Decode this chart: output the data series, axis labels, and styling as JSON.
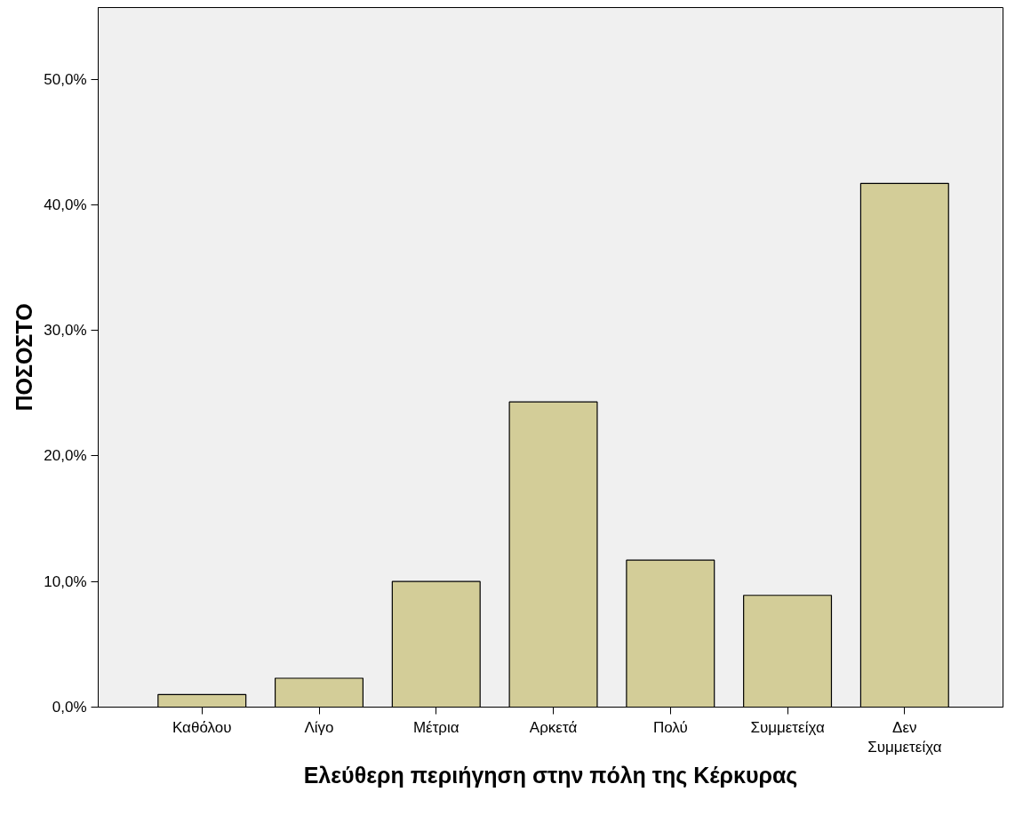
{
  "chart_data": {
    "type": "bar",
    "xlabel": "Ελεύθερη περιήγηση στην πόλη της Κέρκυρας",
    "ylabel": "ΠΟΣΟΣΤΟ",
    "categories": [
      "Καθόλου",
      "Λίγο",
      "Μέτρια",
      "Αρκετά",
      "Πολύ",
      "Συμμετείχα",
      "Δεν\nΣυμμετείχα"
    ],
    "values": [
      1.0,
      2.3,
      10.0,
      24.3,
      11.7,
      8.9,
      41.7
    ],
    "color": "#d3cd98",
    "ylim": [
      0,
      55.7
    ],
    "yticks": [
      {
        "value": 0,
        "label": "0,0%"
      },
      {
        "value": 10,
        "label": "10,0%"
      },
      {
        "value": 20,
        "label": "20,0%"
      },
      {
        "value": 30,
        "label": "30,0%"
      },
      {
        "value": 40,
        "label": "40,0%"
      },
      {
        "value": 50,
        "label": "50,0%"
      }
    ],
    "grid": false
  }
}
